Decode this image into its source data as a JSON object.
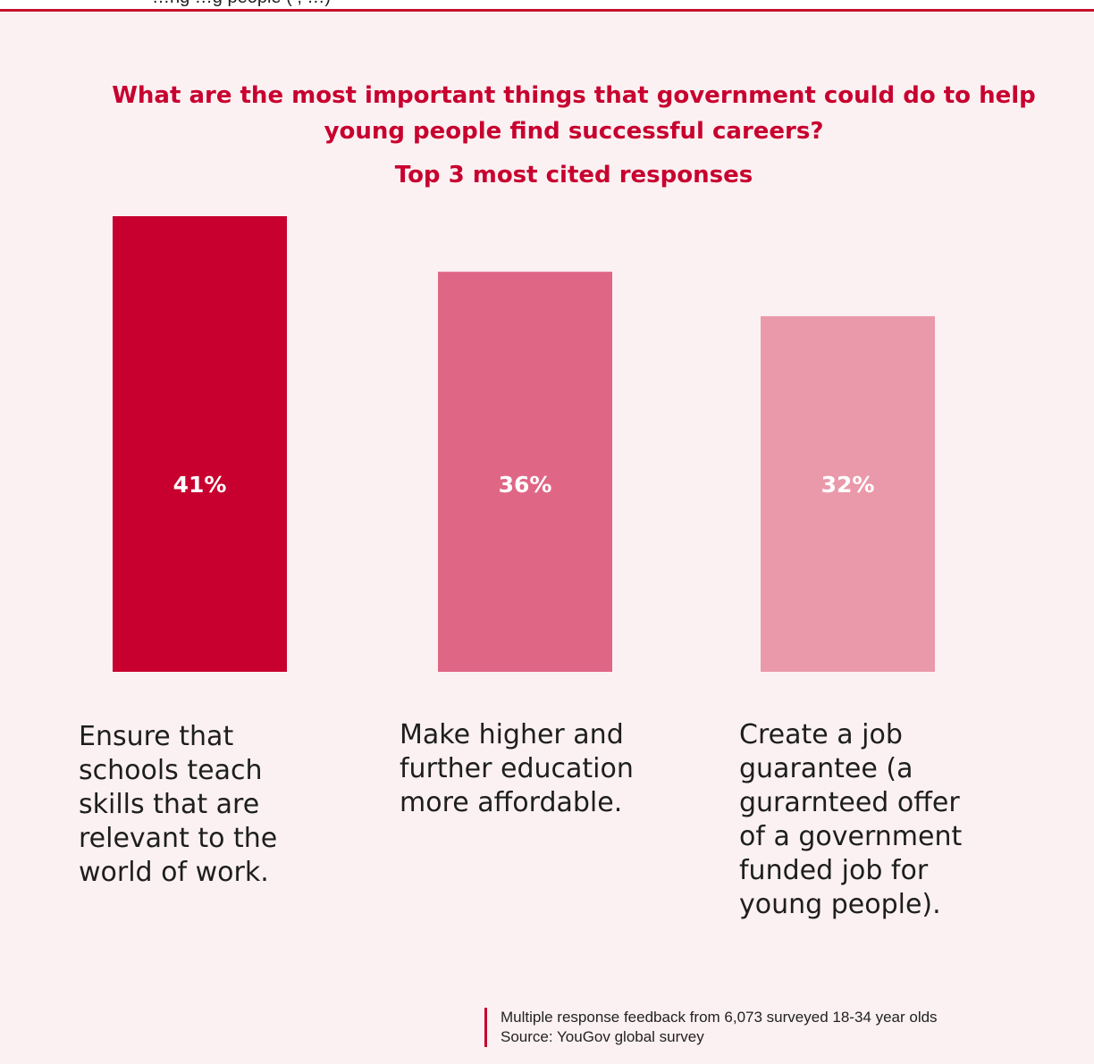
{
  "header": {
    "cut_off_text": "…ng                                 …g people (                    , …)"
  },
  "colors": {
    "accent": "#c8002f",
    "panel_background": "#fbf1f2",
    "bar_1": "#c8002f",
    "bar_2": "#e06686",
    "bar_3": "#ea99aa"
  },
  "chart_data": {
    "type": "bar",
    "title": "What are the most important things that government could do to help young people find successful careers?",
    "subtitle": "Top 3 most cited responses",
    "categories": [
      "Ensure that schools teach skills that are relevant to the world of work.",
      "Make higher and further education more affordable.",
      "Create a job guarantee (a gurarnteed offer of a government funded job for young people)."
    ],
    "values": [
      41,
      36,
      32
    ],
    "value_labels": [
      "41%",
      "36%",
      "32%"
    ],
    "unit": "%",
    "ylim": [
      0,
      41
    ],
    "grid": false,
    "legend": "none"
  },
  "footnote": {
    "line1": "Multiple response feedback from 6,073 surveyed 18-34 year olds",
    "line2": "Source: YouGov global survey"
  }
}
